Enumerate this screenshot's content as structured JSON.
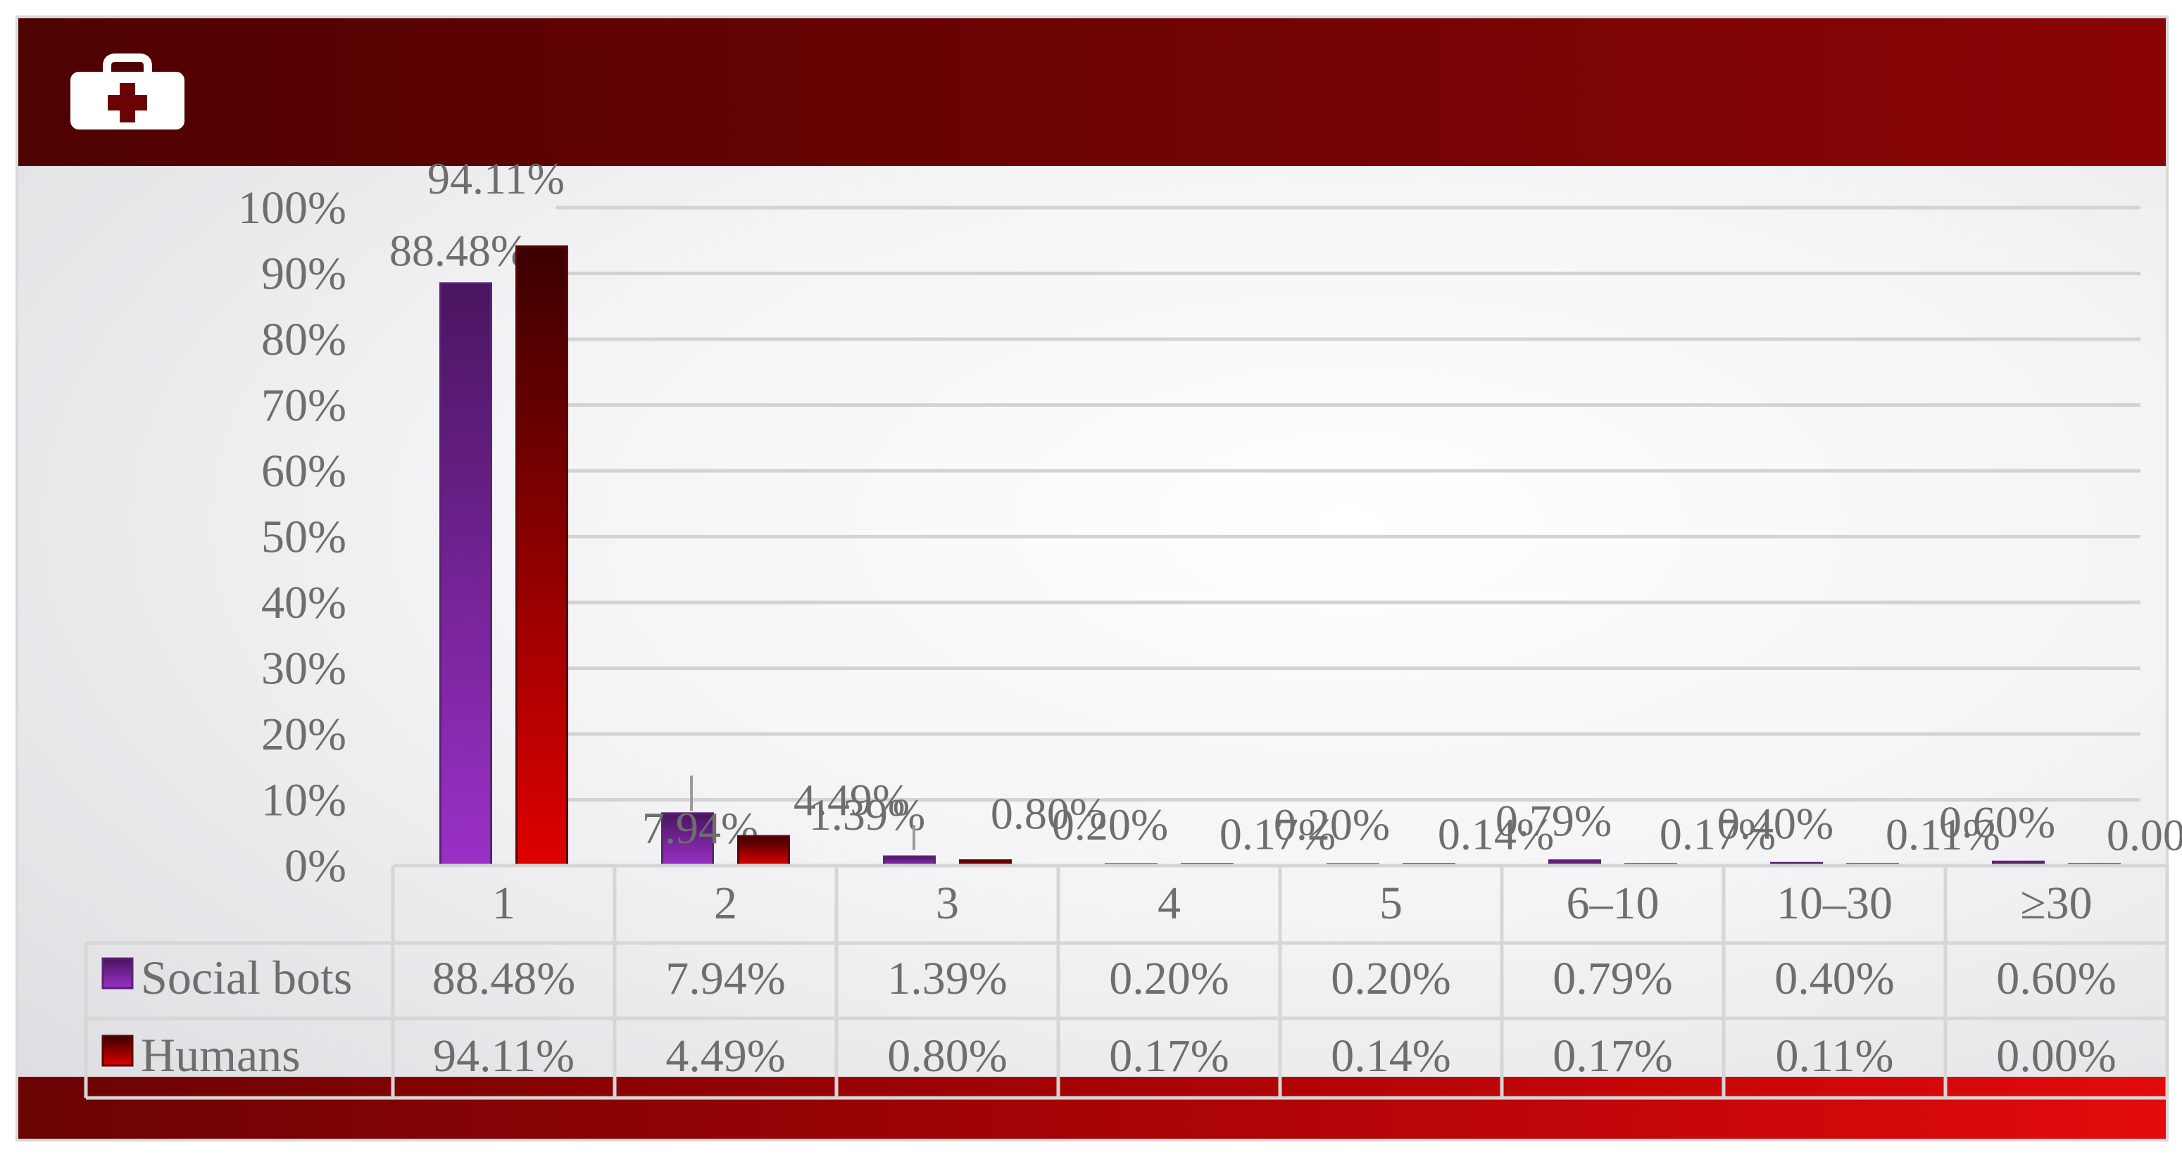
{
  "header": {
    "icon": "first-aid-kit-icon"
  },
  "colors": {
    "bots_top": "#4a1560",
    "bots_bottom": "#9a30c6",
    "humans_top": "#3a0000",
    "humans_bottom": "#e00000",
    "text": "#6e6e6e",
    "grid": "#d3d3d3",
    "table_border": "#d6d6d6"
  },
  "chart_data": {
    "type": "bar",
    "categories": [
      "1",
      "2",
      "3",
      "4",
      "5",
      "6–10",
      "10–30",
      "≥30"
    ],
    "y_tick_labels": [
      "0%",
      "10%",
      "20%",
      "30%",
      "40%",
      "50%",
      "60%",
      "70%",
      "80%",
      "90%",
      "100%"
    ],
    "ylim": [
      0,
      100
    ],
    "grid": true,
    "legend": "data-table",
    "series": [
      {
        "name": "Social bots",
        "values": [
          88.48,
          7.94,
          1.39,
          0.2,
          0.2,
          0.79,
          0.4,
          0.6
        ],
        "labels": [
          "88.48%",
          "7.94%",
          "1.39%",
          "0.20%",
          "0.20%",
          "0.79%",
          "0.40%",
          "0.60%"
        ]
      },
      {
        "name": "Humans",
        "values": [
          94.11,
          4.49,
          0.8,
          0.17,
          0.14,
          0.17,
          0.11,
          0.0
        ],
        "labels": [
          "94.11%",
          "4.49%",
          "0.80%",
          "0.17%",
          "0.14%",
          "0.17%",
          "0.11%",
          "0.00%"
        ]
      }
    ]
  }
}
